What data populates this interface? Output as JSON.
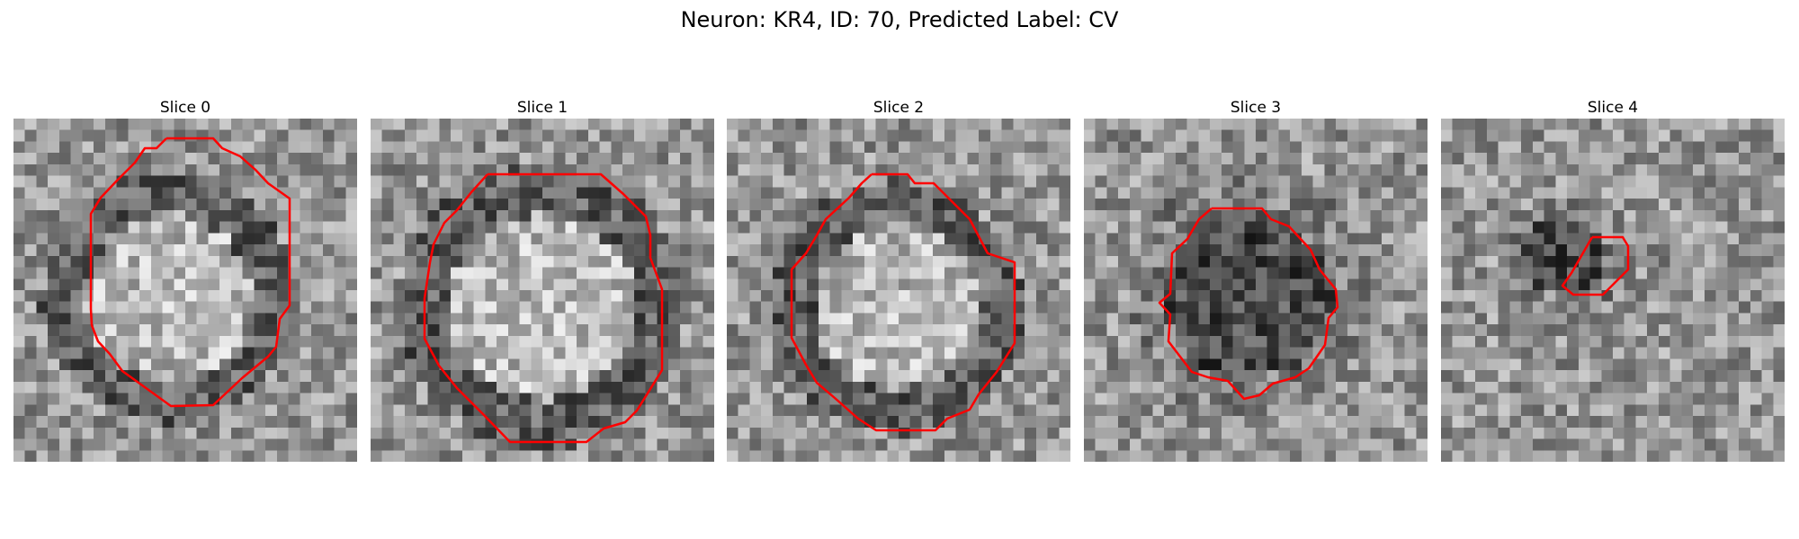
{
  "figure": {
    "title": "Neuron: KR4, ID: 70, Predicted Label: CV",
    "outline_color": "#ff0000"
  },
  "panels": [
    {
      "title": "Slice 0",
      "image": "grayscale-microscopy-slice",
      "blob": {
        "center": [
          0.45,
          0.52
        ],
        "radius": 0.32,
        "type": "bright-ring"
      }
    },
    {
      "title": "Slice 1",
      "image": "grayscale-microscopy-slice",
      "blob": {
        "center": [
          0.5,
          0.55
        ],
        "radius": 0.36,
        "type": "bright-ring"
      }
    },
    {
      "title": "Slice 2",
      "image": "grayscale-microscopy-slice",
      "blob": {
        "center": [
          0.49,
          0.55
        ],
        "radius": 0.32,
        "type": "bright-ring"
      }
    },
    {
      "title": "Slice 3",
      "image": "grayscale-microscopy-slice",
      "blob": {
        "center": [
          0.48,
          0.52
        ],
        "radius": 0.24,
        "type": "dark"
      }
    },
    {
      "title": "Slice 4",
      "image": "grayscale-microscopy-slice",
      "blob": {
        "center": [
          0.35,
          0.4
        ],
        "radius": 0.12,
        "type": "dark"
      }
    }
  ]
}
